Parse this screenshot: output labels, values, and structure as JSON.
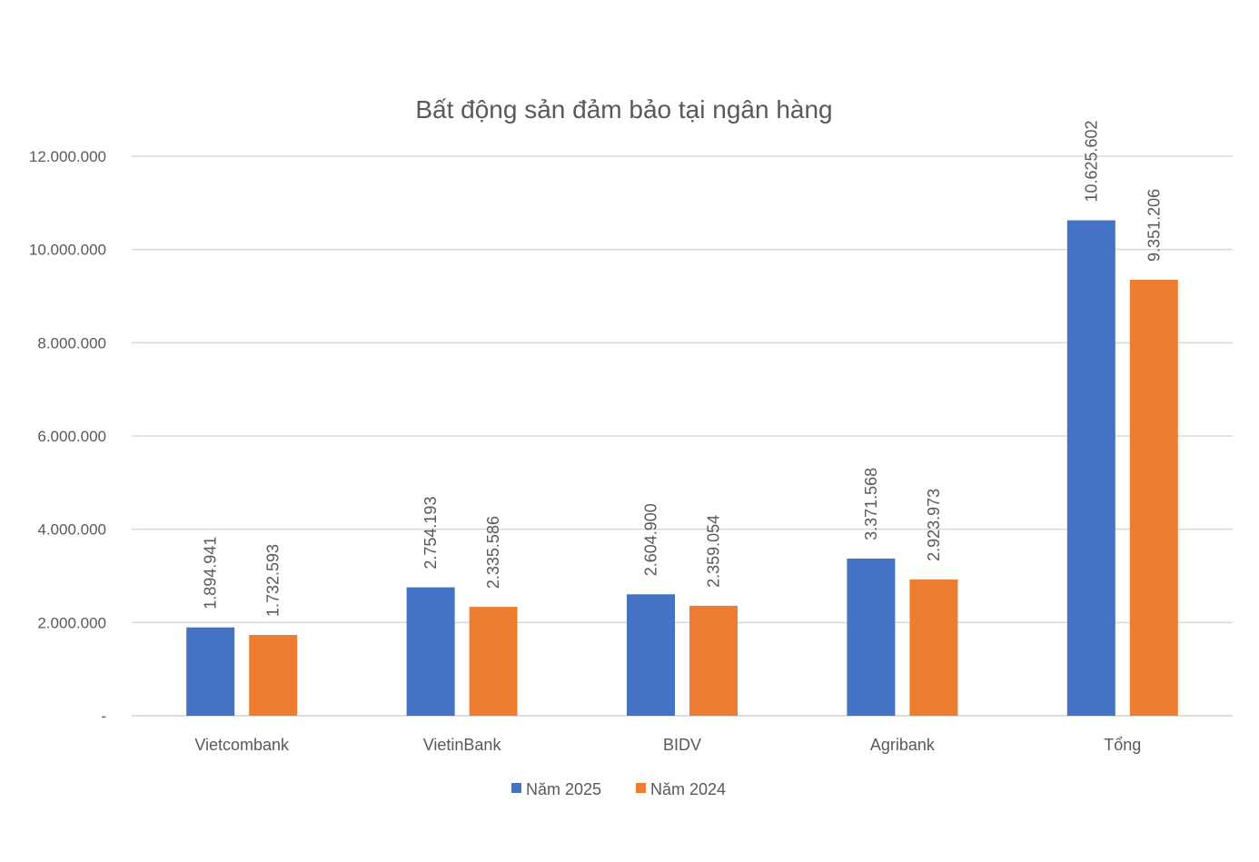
{
  "chart_data": {
    "type": "bar",
    "title": "Bất động sản đảm bảo tại ngân hàng",
    "categories": [
      "Vietcombank",
      "VietinBank",
      "BIDV",
      "Agribank",
      "Tổng"
    ],
    "series": [
      {
        "name": "Năm 2025",
        "color": "#4472C4",
        "values": [
          1894941,
          2754193,
          2604900,
          3371568,
          10625602
        ],
        "labels": [
          "1.894.941",
          "2.754.193",
          "2.604.900",
          "3.371.568",
          "10.625.602"
        ]
      },
      {
        "name": "Năm 2024",
        "color": "#ED7D31",
        "values": [
          1732593,
          2335586,
          2359054,
          2923973,
          9351206
        ],
        "labels": [
          "1.732.593",
          "2.335.586",
          "2.359.054",
          "2.923.973",
          "9.351.206"
        ]
      }
    ],
    "ylim": [
      0,
      12000000
    ],
    "yticks": [
      0,
      2000000,
      4000000,
      6000000,
      8000000,
      10000000,
      12000000
    ],
    "ytick_labels": [
      "-",
      "2.000.000",
      "4.000.000",
      "6.000.000",
      "8.000.000",
      "10.000.000",
      "12.000.000"
    ],
    "grid": true,
    "legend_position": "bottom"
  }
}
